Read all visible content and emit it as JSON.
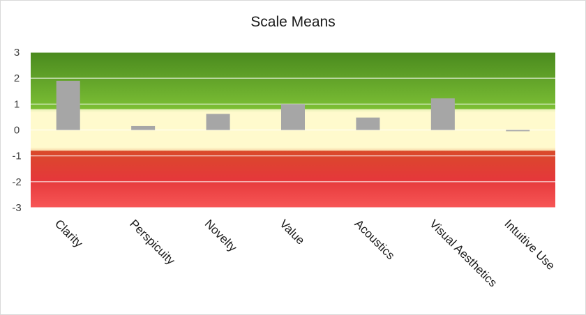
{
  "chart_data": {
    "type": "bar",
    "title": "Scale Means",
    "categories": [
      "Clarity",
      "Perspicuity",
      "Novelty",
      "Value",
      "Acoustics",
      "Visual Aesthetics",
      "Intuitive Use"
    ],
    "values": [
      1.9,
      0.15,
      0.62,
      1.0,
      0.48,
      1.22,
      -0.05
    ],
    "ylim": [
      -3,
      3
    ],
    "yticks": [
      3,
      2,
      1,
      0,
      -1,
      -2,
      -3
    ],
    "grid": true,
    "bar_color": "#a6a6a6",
    "background_bands": [
      {
        "from": 0.8,
        "to": 3,
        "color_top": "#4a8a1e",
        "color_bottom": "#7cbf35"
      },
      {
        "from": -0.8,
        "to": 0.8,
        "color": "#fffacd"
      },
      {
        "from": -3,
        "to": -0.8,
        "color_top": "#e2573a",
        "color_bottom": "#f55050"
      }
    ]
  }
}
